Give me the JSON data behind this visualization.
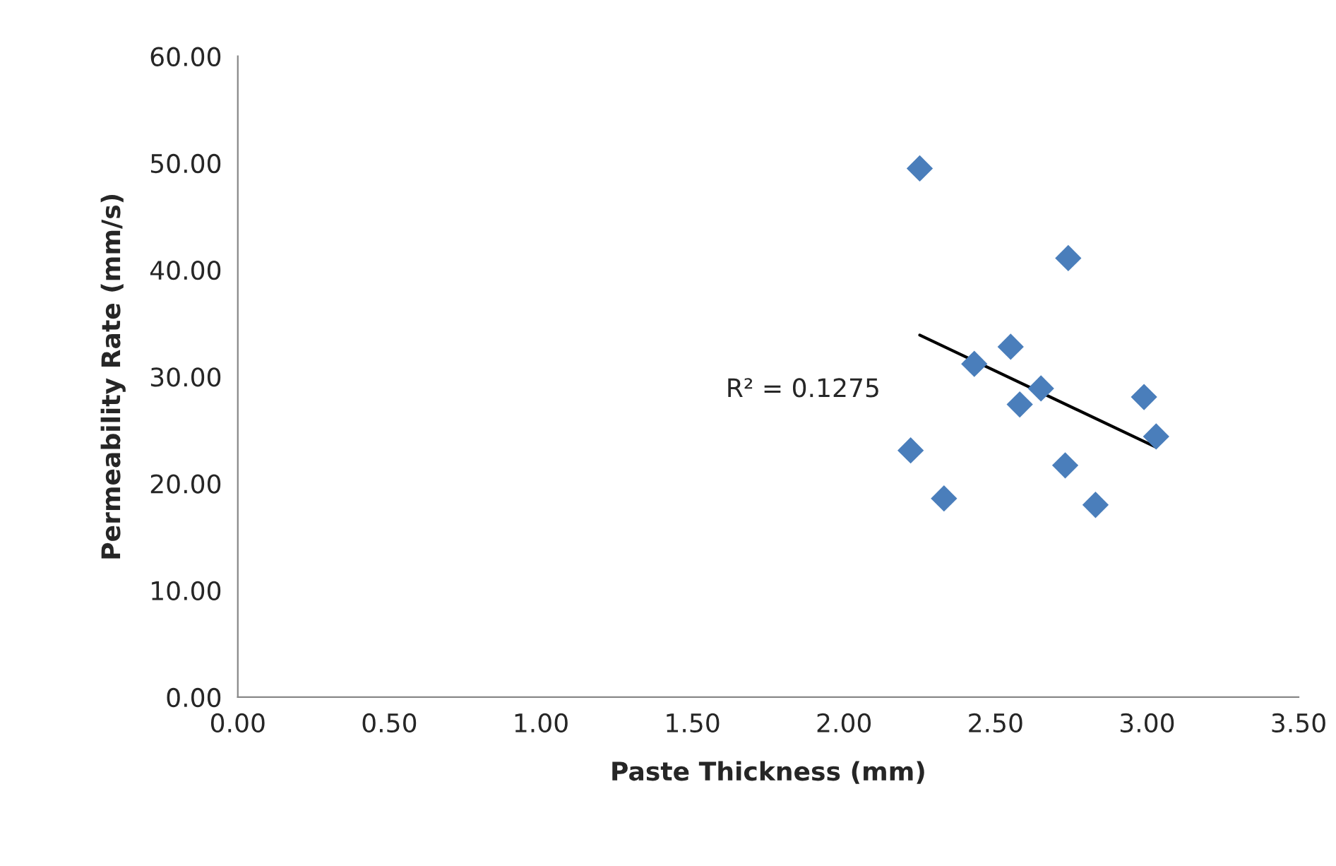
{
  "chart_data": {
    "type": "scatter",
    "xlabel": "Paste Thickness (mm)",
    "ylabel": "Permeability Rate (mm/s)",
    "xlim": [
      0,
      3.5
    ],
    "xticks": [
      {
        "value": 0,
        "label": "0.00"
      },
      {
        "value": 0.5,
        "label": "0.50"
      },
      {
        "value": 1,
        "label": "1.00"
      },
      {
        "value": 1.5,
        "label": "1.50"
      },
      {
        "value": 2,
        "label": "2.00"
      },
      {
        "value": 2.5,
        "label": "2.50"
      },
      {
        "value": 3,
        "label": "3.00"
      },
      {
        "value": 3.5,
        "label": "3.50"
      }
    ],
    "ylim": [
      0,
      60
    ],
    "yticks": [
      {
        "value": 0,
        "label": "0.00"
      },
      {
        "value": 10,
        "label": "10.00"
      },
      {
        "value": 20,
        "label": "20.00"
      },
      {
        "value": 30,
        "label": "30.00"
      },
      {
        "value": 40,
        "label": "40.00"
      },
      {
        "value": 50,
        "label": "50.00"
      },
      {
        "value": 60,
        "label": "60.00"
      }
    ],
    "grid": false,
    "legend": false,
    "series": [
      {
        "marker": "diamond",
        "color": "#4a7ebb",
        "x": [
          2.25,
          2.74,
          2.55,
          2.43,
          2.65,
          2.58,
          2.99,
          3.03,
          2.22,
          2.73,
          2.33,
          2.83
        ],
        "values": [
          49.5,
          41.1,
          32.8,
          31.2,
          28.9,
          27.4,
          28.1,
          24.4,
          23.1,
          21.7,
          18.6,
          18.0
        ]
      },
      {
        "type": "line",
        "color": "#000000",
        "x": [
          2.25,
          3.03
        ],
        "values": [
          33.9,
          23.4
        ]
      }
    ],
    "annotations": [
      {
        "text": "R² = 0.1275",
        "x": 2.25,
        "y": 33.9
      }
    ]
  }
}
